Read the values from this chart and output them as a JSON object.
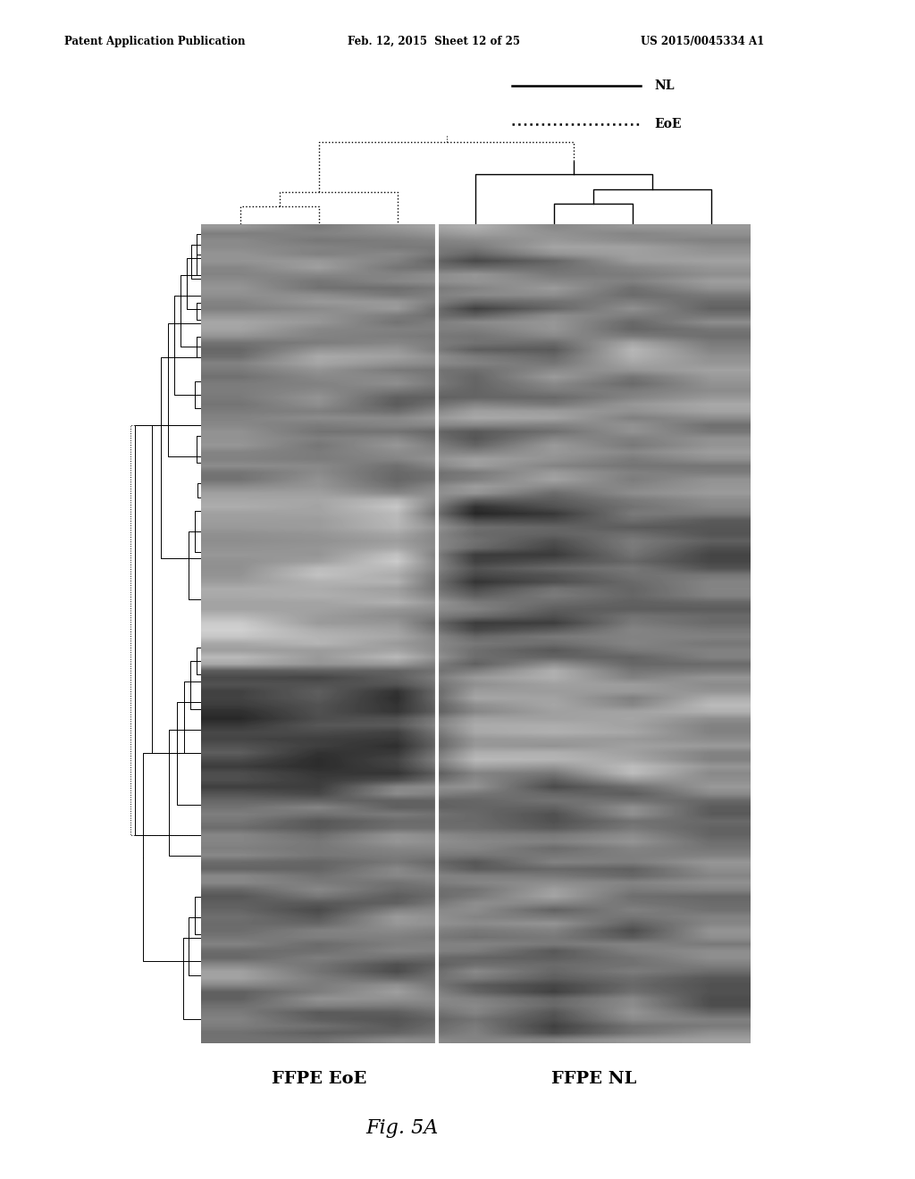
{
  "page_header_left": "Patent Application Publication",
  "page_header_middle": "Feb. 12, 2015  Sheet 12 of 25",
  "page_header_right": "US 2015/0045334 A1",
  "legend_NL": "NL",
  "legend_EoE": "EoE",
  "xlabel_left": "FFPE EoE",
  "xlabel_right": "FFPE NL",
  "figure_label": "Fig. 5A",
  "n_genes": 120,
  "n_samples": 7,
  "n_eoe": 3,
  "n_nl": 4,
  "background_color": "#ffffff",
  "seed": 42
}
